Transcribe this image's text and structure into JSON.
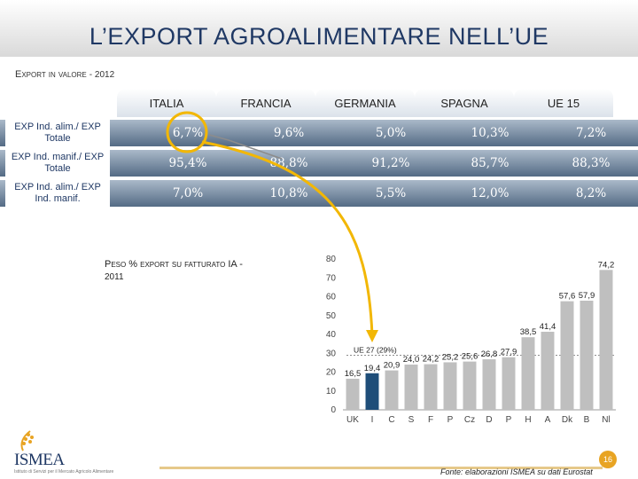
{
  "title": "L’EXPORT AGROALIMENTARE NELL’UE",
  "subtitle": {
    "main": "Export in valore",
    "year": "- 2012"
  },
  "table": {
    "columns": [
      "ITALIA",
      "FRANCIA",
      "GERMANIA",
      "SPAGNA",
      "UE 15"
    ],
    "rows": [
      {
        "label": "EXP Ind. alim./ EXP Totale",
        "values": [
          "6,7%",
          "9,6%",
          "5,0%",
          "10,3%",
          "7,2%"
        ]
      },
      {
        "label": "EXP Ind. manif./ EXP Totale",
        "values": [
          "95,4%",
          "88,8%",
          "91,2%",
          "85,7%",
          "88,3%"
        ]
      },
      {
        "label": "EXP Ind. alim./ EXP Ind. manif.",
        "values": [
          "7,0%",
          "10,8%",
          "5,5%",
          "12,0%",
          "8,2%"
        ]
      }
    ]
  },
  "chart_label": {
    "main": "Peso % export su fatturato IA",
    "dash": "-",
    "year": "2011"
  },
  "chart_data": {
    "type": "bar",
    "categories": [
      "UK",
      "I",
      "C",
      "S",
      "F",
      "P",
      "Cz",
      "D",
      "P",
      "H",
      "A",
      "Dk",
      "B",
      "Nl"
    ],
    "values": [
      16.5,
      19.4,
      20.9,
      24.0,
      24.2,
      25.2,
      25.6,
      26.8,
      27.9,
      38.5,
      41.4,
      57.6,
      57.9,
      74.2
    ],
    "value_labels": [
      "16,5",
      "19,4",
      "20,9",
      "24,0",
      "24,2",
      "25,2",
      "25,6",
      "26,8",
      "27,9",
      "38,5",
      "41,4",
      "57,6",
      "57,9",
      "74,2"
    ],
    "highlight_index": 1,
    "bar_color": "#bfbfbf",
    "highlight_color": "#1f4e79",
    "ylim": [
      0,
      80
    ],
    "yticks": [
      0,
      10,
      20,
      30,
      40,
      50,
      60,
      70,
      80
    ],
    "annotation": "UE 27 (29%)",
    "reference_value": 29
  },
  "logo": {
    "name": "ISMEA",
    "sub": "Istituto di Servizi per il Mercato Agricolo Alimentare"
  },
  "source": "Fonte: elaborazioni ISMEA su dati Eurostat",
  "page_number": "16",
  "colors": {
    "title": "#1f3864",
    "accent": "#e8a423",
    "band_dark": "#546b85"
  }
}
